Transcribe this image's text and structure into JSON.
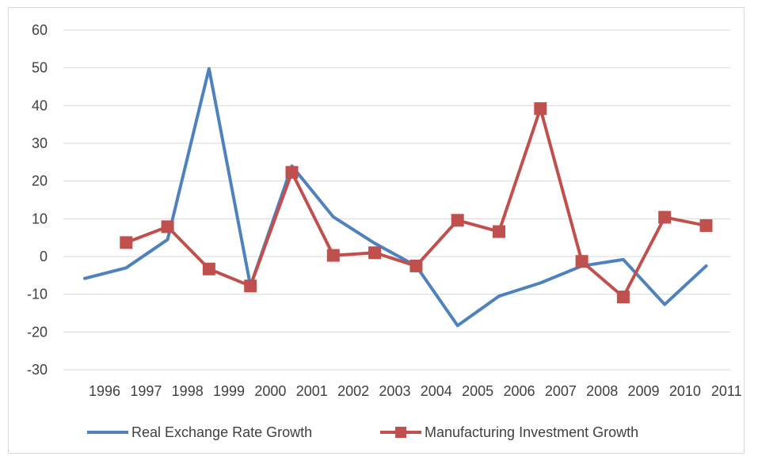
{
  "chart_data": {
    "type": "line",
    "title": "",
    "xlabel": "",
    "ylabel": "",
    "categories": [
      "1996",
      "1997",
      "1998",
      "1999",
      "2000",
      "2001",
      "2002",
      "2003",
      "2004",
      "2005",
      "2006",
      "2007",
      "2008",
      "2009",
      "2010",
      "2011"
    ],
    "ylim": [
      -30,
      60
    ],
    "yticks": [
      60,
      50,
      40,
      30,
      20,
      10,
      0,
      -10,
      -20,
      -30
    ],
    "grid": true,
    "legend_position": "bottom",
    "series": [
      {
        "name": "Real Exchange Rate Growth",
        "color": "#4f81bd",
        "marker": "none",
        "values": [
          -5.8,
          -3.0,
          4.5,
          49.8,
          -7.8,
          24.0,
          10.5,
          3.5,
          -2.5,
          -18.3,
          -10.5,
          -7.0,
          -2.5,
          -0.8,
          -12.7,
          -2.5
        ]
      },
      {
        "name": "Manufacturing Investment Growth",
        "color": "#c0504d",
        "marker": "square",
        "values": [
          null,
          3.7,
          7.9,
          -3.3,
          -7.8,
          22.3,
          0.3,
          1.0,
          -2.5,
          9.6,
          6.6,
          39.2,
          -1.3,
          -10.7,
          10.4,
          8.2
        ]
      }
    ]
  }
}
